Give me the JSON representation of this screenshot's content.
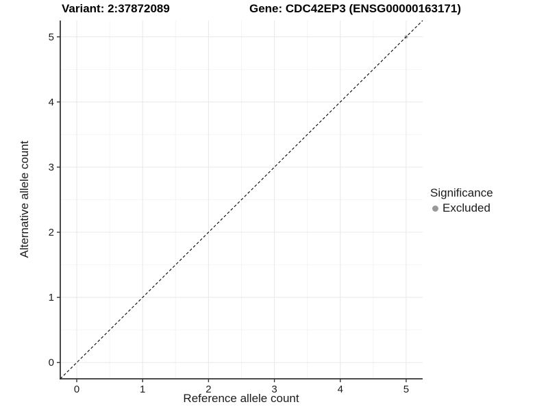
{
  "chart_data": {
    "type": "scatter",
    "title_left": "Variant: 2:37872089",
    "title_right": "Gene: CDC42EP3 (ENSG00000163171)",
    "xlabel": "Reference allele count",
    "ylabel": "Alternative allele count",
    "x_ticks": [
      0,
      1,
      2,
      3,
      4,
      5
    ],
    "y_ticks": [
      0,
      1,
      2,
      3,
      4,
      5
    ],
    "xlim": [
      -0.25,
      5.25
    ],
    "ylim": [
      -0.25,
      5.25
    ],
    "grid": "major-and-minor",
    "grid_major_color": "#e8e8e8",
    "grid_minor_color": "#f4f4f4",
    "axis_line_color": "#333333",
    "tick_label_color": "#1a1a1a",
    "reference_line": {
      "type": "identity-abline",
      "slope": 1,
      "intercept": 0,
      "style": "dashed",
      "color": "#000000"
    },
    "series": [
      {
        "name": "Excluded",
        "point_color": "#b3b3b3",
        "points": [
          {
            "x": 5,
            "y": 5
          }
        ]
      }
    ],
    "legend": {
      "title": "Significance",
      "position": "right",
      "items": [
        {
          "label": "Excluded",
          "marker_color": "#999999"
        }
      ]
    }
  }
}
